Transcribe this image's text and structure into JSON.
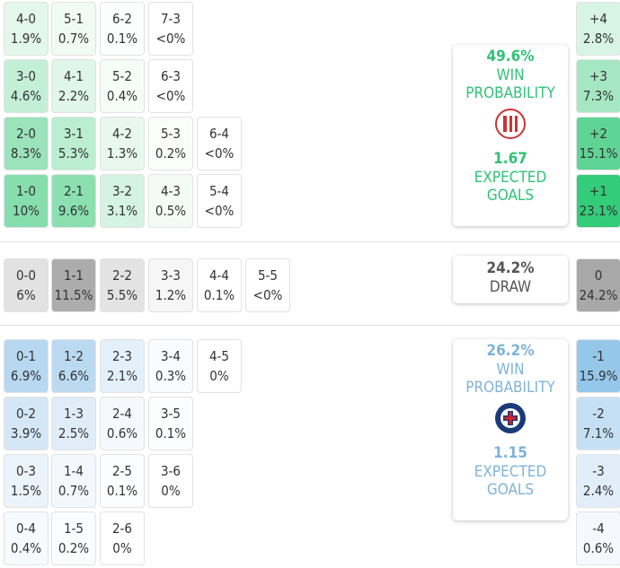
{
  "home": {
    "rows": [
      [
        {
          "score": "4-0",
          "pct": "1.9%",
          "color": "#e3f7ec"
        },
        {
          "score": "5-1",
          "pct": "0.7%",
          "color": "#f1fbf5"
        },
        {
          "score": "6-2",
          "pct": "0.1%",
          "color": "#fbfefc"
        },
        {
          "score": "7-3",
          "pct": "<0%",
          "color": "#ffffff"
        }
      ],
      [
        {
          "score": "3-0",
          "pct": "4.6%",
          "color": "#c4efd7"
        },
        {
          "score": "4-1",
          "pct": "2.2%",
          "color": "#e0f6ea"
        },
        {
          "score": "5-2",
          "pct": "0.4%",
          "color": "#f6fcf8"
        },
        {
          "score": "6-3",
          "pct": "<0%",
          "color": "#ffffff"
        }
      ],
      [
        {
          "score": "2-0",
          "pct": "8.3%",
          "color": "#9ae3bb"
        },
        {
          "score": "3-1",
          "pct": "5.3%",
          "color": "#bbedd1"
        },
        {
          "score": "4-2",
          "pct": "1.3%",
          "color": "#e8f8ef"
        },
        {
          "score": "5-3",
          "pct": "0.2%",
          "color": "#fafefb"
        },
        {
          "score": "6-4",
          "pct": "<0%",
          "color": "#ffffff"
        }
      ],
      [
        {
          "score": "1-0",
          "pct": "10%",
          "color": "#86ddad"
        },
        {
          "score": "2-1",
          "pct": "9.6%",
          "color": "#8bdfb1"
        },
        {
          "score": "3-2",
          "pct": "3.1%",
          "color": "#d4f3e2"
        },
        {
          "score": "4-3",
          "pct": "0.5%",
          "color": "#f4fbf7"
        },
        {
          "score": "5-4",
          "pct": "<0%",
          "color": "#ffffff"
        }
      ]
    ],
    "margins": [
      {
        "label": "+4",
        "pct": "2.8%",
        "color": "#d7f4e4"
      },
      {
        "label": "+3",
        "pct": "7.3%",
        "color": "#a6e7c3"
      },
      {
        "label": "+2",
        "pct": "15.1%",
        "color": "#5fd494"
      },
      {
        "label": "+1",
        "pct": "23.1%",
        "color": "#33cc7a"
      }
    ],
    "card": {
      "win_pct": "49.6%",
      "win_label": "WIN PROBABILITY",
      "xg": "1.67",
      "xg_label": "EXPECTED GOALS"
    }
  },
  "draw": {
    "rows": [
      [
        {
          "score": "0-0",
          "pct": "6%",
          "color": "#e2e2e2"
        },
        {
          "score": "1-1",
          "pct": "11.5%",
          "color": "#acacac"
        },
        {
          "score": "2-2",
          "pct": "5.5%",
          "color": "#e3e3e3"
        },
        {
          "score": "3-3",
          "pct": "1.2%",
          "color": "#f6f6f6"
        },
        {
          "score": "4-4",
          "pct": "0.1%",
          "color": "#ffffff"
        },
        {
          "score": "5-5",
          "pct": "<0%",
          "color": "#ffffff"
        }
      ]
    ],
    "margins": [
      {
        "label": "0",
        "pct": "24.2%",
        "color": "#a8a8a8"
      }
    ],
    "card": {
      "pct": "24.2%",
      "label": "DRAW"
    }
  },
  "away": {
    "rows": [
      [
        {
          "score": "0-1",
          "pct": "6.9%",
          "color": "#b7d8f0"
        },
        {
          "score": "1-2",
          "pct": "6.6%",
          "color": "#bbdaf1"
        },
        {
          "score": "2-3",
          "pct": "2.1%",
          "color": "#e3eff9"
        },
        {
          "score": "3-4",
          "pct": "0.3%",
          "color": "#f9fbfe"
        },
        {
          "score": "4-5",
          "pct": "0%",
          "color": "#ffffff"
        }
      ],
      [
        {
          "score": "0-2",
          "pct": "3.9%",
          "color": "#d4e7f6"
        },
        {
          "score": "1-3",
          "pct": "2.5%",
          "color": "#e0edf8"
        },
        {
          "score": "2-4",
          "pct": "0.6%",
          "color": "#f5f9fd"
        },
        {
          "score": "3-5",
          "pct": "0.1%",
          "color": "#fcfdff"
        }
      ],
      [
        {
          "score": "0-3",
          "pct": "1.5%",
          "color": "#ebf3fb"
        },
        {
          "score": "1-4",
          "pct": "0.7%",
          "color": "#f4f8fd"
        },
        {
          "score": "2-5",
          "pct": "0.1%",
          "color": "#fcfdff"
        },
        {
          "score": "3-6",
          "pct": "0%",
          "color": "#ffffff"
        }
      ],
      [
        {
          "score": "0-4",
          "pct": "0.4%",
          "color": "#f7fafe"
        },
        {
          "score": "1-5",
          "pct": "0.2%",
          "color": "#fafcfe"
        },
        {
          "score": "2-6",
          "pct": "0%",
          "color": "#ffffff"
        }
      ]
    ],
    "margins": [
      {
        "label": "-1",
        "pct": "15.9%",
        "color": "#94c7ea"
      },
      {
        "label": "-2",
        "pct": "7.1%",
        "color": "#c5e0f4"
      },
      {
        "label": "-3",
        "pct": "2.4%",
        "color": "#e1eef9"
      },
      {
        "label": "-4",
        "pct": "0.6%",
        "color": "#f5f9fd"
      }
    ],
    "card": {
      "win_pct": "26.2%",
      "win_label": "WIN PROBABILITY",
      "xg": "1.15",
      "xg_label": "EXPECTED GOALS"
    }
  }
}
